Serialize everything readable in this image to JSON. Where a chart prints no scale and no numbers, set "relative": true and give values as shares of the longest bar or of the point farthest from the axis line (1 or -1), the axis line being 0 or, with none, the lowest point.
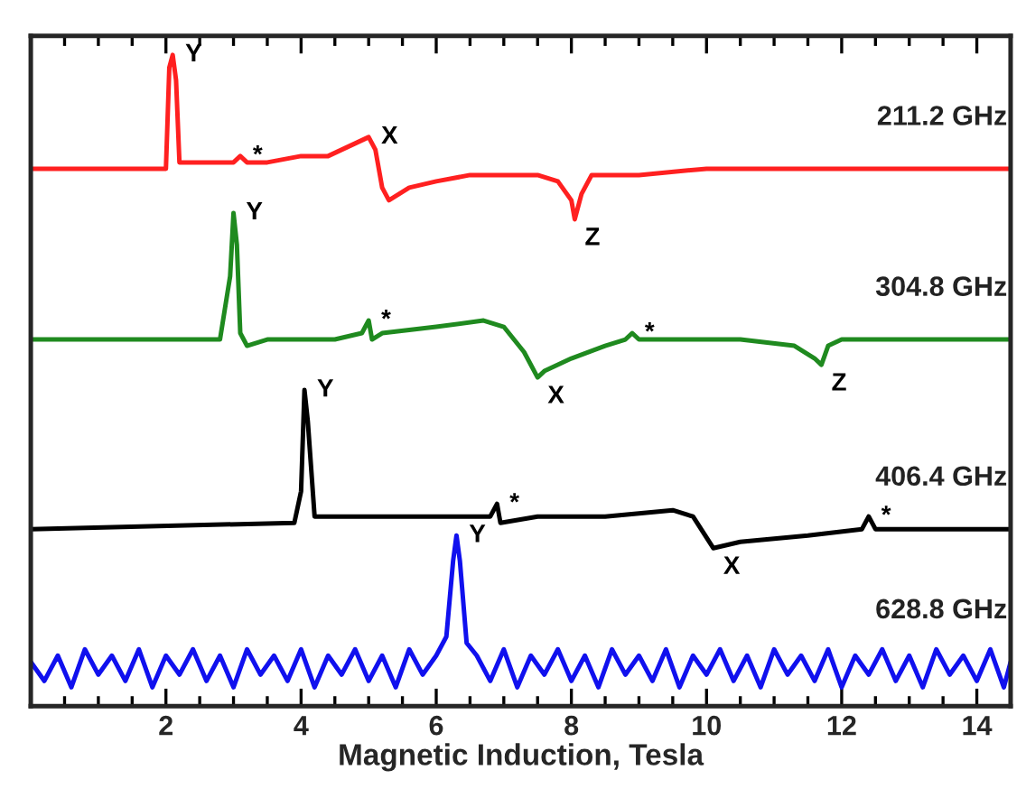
{
  "chart_data": {
    "type": "line",
    "relative": true,
    "xlabel": "Magnetic Induction, Tesla",
    "xlim": [
      0,
      14.5
    ],
    "xticks": [
      2,
      4,
      6,
      8,
      10,
      12,
      14
    ],
    "tick_labels": "x",
    "grid": false,
    "legend": false,
    "marker": "none",
    "line_style": "solid",
    "series": [
      {
        "name": "211.2 GHz",
        "color": "#ff2020",
        "x": [
          0,
          1.9,
          2.0,
          2.05,
          2.1,
          2.15,
          2.2,
          2.4,
          3.0,
          3.1,
          3.2,
          3.5,
          4.0,
          4.4,
          4.8,
          5.0,
          5.1,
          5.2,
          5.3,
          5.6,
          6.0,
          6.5,
          7.0,
          7.5,
          7.8,
          8.0,
          8.05,
          8.15,
          8.3,
          9,
          10,
          12,
          14.5
        ],
        "values": [
          0.82,
          0.82,
          0.82,
          0.98,
          1.0,
          0.96,
          0.83,
          0.83,
          0.83,
          0.84,
          0.83,
          0.83,
          0.84,
          0.84,
          0.86,
          0.87,
          0.85,
          0.79,
          0.77,
          0.79,
          0.8,
          0.81,
          0.81,
          0.81,
          0.8,
          0.77,
          0.74,
          0.78,
          0.81,
          0.81,
          0.82,
          0.82,
          0.82
        ]
      },
      {
        "name": "304.8 GHz",
        "color": "#1f8a1f",
        "x": [
          0,
          2.8,
          2.95,
          3.0,
          3.05,
          3.1,
          3.2,
          3.5,
          4.5,
          4.9,
          5.0,
          5.05,
          5.2,
          6,
          6.7,
          7.0,
          7.3,
          7.5,
          7.6,
          8,
          8.5,
          8.8,
          8.9,
          9.0,
          9.5,
          10.5,
          11.3,
          11.6,
          11.7,
          11.8,
          12,
          14.5
        ],
        "values": [
          0.55,
          0.55,
          0.65,
          0.75,
          0.7,
          0.56,
          0.54,
          0.55,
          0.55,
          0.56,
          0.58,
          0.55,
          0.56,
          0.57,
          0.58,
          0.57,
          0.53,
          0.49,
          0.5,
          0.52,
          0.54,
          0.55,
          0.56,
          0.55,
          0.55,
          0.55,
          0.54,
          0.52,
          0.51,
          0.54,
          0.55,
          0.55
        ]
      },
      {
        "name": "406.4 GHz",
        "color": "#000000",
        "x": [
          0,
          3.9,
          4.0,
          4.05,
          4.1,
          4.2,
          4.5,
          6.8,
          6.9,
          6.95,
          7.5,
          8.5,
          9.5,
          9.8,
          10.1,
          10.5,
          11.5,
          12.3,
          12.4,
          12.5,
          13,
          14.5
        ],
        "values": [
          0.25,
          0.26,
          0.31,
          0.47,
          0.42,
          0.27,
          0.27,
          0.27,
          0.29,
          0.26,
          0.27,
          0.27,
          0.28,
          0.27,
          0.22,
          0.23,
          0.24,
          0.25,
          0.27,
          0.25,
          0.25,
          0.25
        ]
      },
      {
        "name": "628.8 GHz",
        "color": "#1010ee",
        "x": [
          0,
          0.2,
          0.4,
          0.6,
          0.8,
          1.0,
          1.2,
          1.4,
          1.6,
          1.8,
          2.0,
          2.2,
          2.4,
          2.6,
          2.8,
          3.0,
          3.2,
          3.4,
          3.6,
          3.8,
          4.0,
          4.2,
          4.4,
          4.6,
          4.8,
          5.0,
          5.2,
          5.4,
          5.6,
          5.8,
          6.0,
          6.15,
          6.25,
          6.3,
          6.35,
          6.45,
          6.6,
          6.8,
          7.0,
          7.2,
          7.4,
          7.6,
          7.8,
          8.0,
          8.2,
          8.4,
          8.6,
          8.8,
          9.0,
          9.2,
          9.4,
          9.6,
          9.8,
          10.0,
          10.2,
          10.4,
          10.6,
          10.8,
          11.0,
          11.2,
          11.4,
          11.6,
          11.8,
          12.0,
          12.2,
          12.4,
          12.6,
          12.8,
          13.0,
          13.2,
          13.4,
          13.6,
          13.8,
          14.0,
          14.2,
          14.4,
          14.5
        ],
        "values": [
          0.04,
          0.01,
          0.05,
          0.0,
          0.06,
          0.02,
          0.05,
          0.01,
          0.06,
          0.0,
          0.05,
          0.02,
          0.06,
          0.01,
          0.05,
          0.0,
          0.06,
          0.02,
          0.05,
          0.01,
          0.06,
          0.0,
          0.05,
          0.02,
          0.06,
          0.01,
          0.05,
          0.0,
          0.06,
          0.02,
          0.05,
          0.08,
          0.2,
          0.24,
          0.2,
          0.07,
          0.05,
          0.01,
          0.06,
          0.0,
          0.05,
          0.02,
          0.06,
          0.01,
          0.05,
          0.0,
          0.06,
          0.02,
          0.05,
          0.01,
          0.06,
          0.0,
          0.05,
          0.02,
          0.06,
          0.01,
          0.05,
          0.0,
          0.06,
          0.02,
          0.05,
          0.01,
          0.06,
          0.0,
          0.05,
          0.02,
          0.06,
          0.01,
          0.05,
          0.0,
          0.06,
          0.02,
          0.05,
          0.01,
          0.06,
          0.0,
          0.04
        ]
      }
    ],
    "annotations": [
      {
        "text": "Y",
        "x": 2.1,
        "y": 1.0
      },
      {
        "text": "*",
        "x": 3.1,
        "y": 0.84
      },
      {
        "text": "X",
        "x": 5.0,
        "y": 0.87
      },
      {
        "text": "Z",
        "x": 8.05,
        "y": 0.74
      },
      {
        "text": "Y",
        "x": 3.0,
        "y": 0.75
      },
      {
        "text": "*",
        "x": 5.0,
        "y": 0.58
      },
      {
        "text": "X",
        "x": 7.5,
        "y": 0.49
      },
      {
        "text": "*",
        "x": 8.9,
        "y": 0.56
      },
      {
        "text": "Z",
        "x": 11.7,
        "y": 0.51
      },
      {
        "text": "Y",
        "x": 4.05,
        "y": 0.47
      },
      {
        "text": "*",
        "x": 6.9,
        "y": 0.29
      },
      {
        "text": "X",
        "x": 10.1,
        "y": 0.22
      },
      {
        "text": "*",
        "x": 12.4,
        "y": 0.27
      },
      {
        "text": "Y",
        "x": 6.3,
        "y": 0.24
      }
    ]
  }
}
